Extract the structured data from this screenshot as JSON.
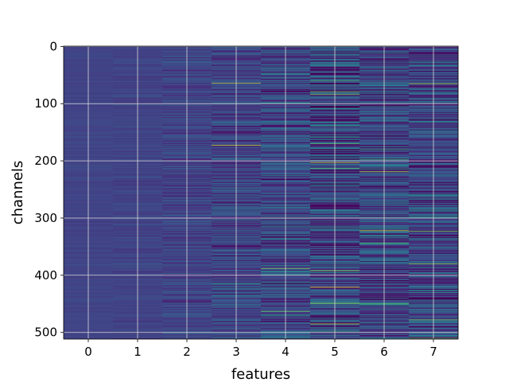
{
  "chart_data": {
    "type": "heatmap",
    "title": "",
    "xlabel": "features",
    "ylabel": "channels",
    "x_categories": [
      "0",
      "1",
      "2",
      "3",
      "4",
      "5",
      "6",
      "7"
    ],
    "x_ticks": [
      "0",
      "1",
      "2",
      "3",
      "4",
      "5",
      "6",
      "7"
    ],
    "y_ticks": [
      "0",
      "100",
      "200",
      "300",
      "400",
      "500"
    ],
    "y_tick_values": [
      0,
      100,
      200,
      300,
      400,
      500
    ],
    "n_rows": 512,
    "ylim": [
      511.5,
      -0.5
    ],
    "grid": true,
    "colormap": "viridis",
    "per_feature_variability": [
      0.05,
      0.08,
      0.16,
      0.26,
      0.34,
      0.46,
      0.42,
      0.4
    ],
    "base_value": 0.25,
    "notable_bright_rows": [
      {
        "feature": "3",
        "row": 64
      },
      {
        "feature": "3",
        "row": 173
      },
      {
        "feature": "4",
        "row": 388
      },
      {
        "feature": "5",
        "row": 84
      },
      {
        "feature": "5",
        "row": 203
      },
      {
        "feature": "5",
        "row": 392
      },
      {
        "feature": "6",
        "row": 219
      },
      {
        "feature": "6",
        "row": 322
      },
      {
        "feature": "7",
        "row": 65
      },
      {
        "feature": "7",
        "row": 380
      },
      {
        "feature": "7",
        "row": 478
      }
    ]
  }
}
